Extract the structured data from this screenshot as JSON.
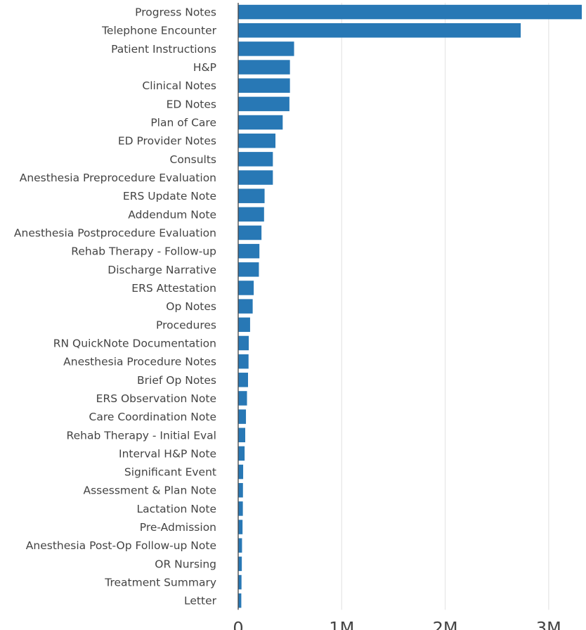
{
  "chart_data": {
    "type": "bar",
    "orientation": "horizontal",
    "title": "",
    "xlabel": "",
    "ylabel": "",
    "categories": [
      "Progress Notes",
      "Telephone Encounter",
      "Patient Instructions",
      "H&P",
      "Clinical Notes",
      "ED Notes",
      "Plan of Care",
      "ED Provider Notes",
      "Consults",
      "Anesthesia Preprocedure Evaluation",
      "ERS Update Note",
      "Addendum Note",
      "Anesthesia Postprocedure Evaluation",
      "Rehab Therapy - Follow-up",
      "Discharge Narrative",
      "ERS Attestation",
      "Op Notes",
      "Procedures",
      "RN QuickNote Documentation",
      "Anesthesia Procedure Notes",
      "Brief Op Notes",
      "ERS Observation Note",
      "Care Coordination Note",
      "Rehab Therapy - Initial Eval",
      "Interval H&P Note",
      "Significant Event",
      "Assessment & Plan Note",
      "Lactation Note",
      "Pre-Admission",
      "Anesthesia Post-Op Follow-up Note",
      "OR Nursing",
      "Treatment Summary",
      "Letter"
    ],
    "values": [
      3320000,
      2730000,
      540000,
      500000,
      500000,
      495000,
      430000,
      360000,
      335000,
      335000,
      255000,
      250000,
      225000,
      205000,
      200000,
      150000,
      140000,
      115000,
      102000,
      100000,
      95000,
      85000,
      75000,
      68000,
      62000,
      48000,
      46000,
      45000,
      42000,
      37000,
      35000,
      32000,
      30000
    ],
    "xlim": [
      0,
      3320000
    ],
    "xticks": [
      0,
      1000000,
      2000000,
      3000000
    ],
    "xtick_labels": [
      "0",
      "1M",
      "2M",
      "3M"
    ],
    "grid": true,
    "bar_color": "#2878b5"
  }
}
